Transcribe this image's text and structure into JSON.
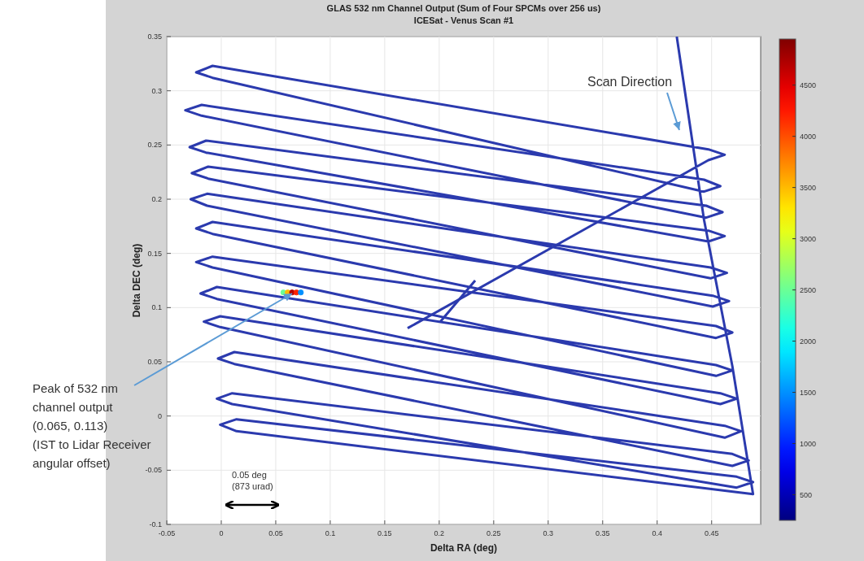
{
  "chart_data": {
    "type": "line",
    "title": "GLAS 532 nm Channel Output (Sum of Four SPCMs over 256 us)",
    "subtitle": "ICESat - Venus Scan #1",
    "xlabel": "Delta RA (deg)",
    "ylabel": "Delta DEC (deg)",
    "xlim": [
      -0.05,
      0.495
    ],
    "ylim": [
      -0.1,
      0.35
    ],
    "xticks": [
      -0.05,
      0,
      0.05,
      0.1,
      0.15,
      0.2,
      0.25,
      0.3,
      0.35,
      0.4,
      0.45
    ],
    "yticks": [
      -0.1,
      -0.05,
      0,
      0.05,
      0.1,
      0.15,
      0.2,
      0.25,
      0.3,
      0.35
    ],
    "clim": [
      250,
      4950
    ],
    "cticks": [
      500,
      1000,
      1500,
      2000,
      2500,
      3000,
      3500,
      4000,
      4500
    ],
    "grid": true,
    "annotations": [
      "Scan Direction",
      {
        "text": "Peak of 532 nm\nchannel output\n(0.065, 0.113)\n(IST to Lidar Receiver\nangular offset)",
        "x": 0.065,
        "y": 0.113
      },
      "0.05 deg\n(873 urad)"
    ],
    "series": [
      {
        "color": "#2b3aae",
        "x": [
          0.418,
          0.443,
          0.469,
          0.488,
          0.014,
          -0.001,
          0.014,
          0.473,
          0.488,
          0.473,
          0.01,
          -0.004,
          0.01,
          0.469,
          0.484,
          0.469,
          0.012,
          -0.003,
          0.012,
          0.462,
          0.477,
          0.462,
          -0.001,
          -0.016,
          -0.001,
          0.458,
          0.473,
          0.458,
          -0.004,
          -0.019,
          -0.004,
          0.454,
          0.469,
          0.454,
          -0.008,
          -0.023,
          -0.008,
          0.454,
          0.469,
          0.454,
          -0.008,
          -0.023,
          -0.008,
          0.451,
          0.466,
          0.451,
          -0.013,
          -0.028,
          -0.013,
          0.449,
          0.464,
          0.449,
          -0.012,
          -0.027,
          -0.012,
          0.447,
          0.462,
          0.447,
          -0.014,
          -0.029,
          -0.014,
          0.445,
          0.46,
          0.445,
          -0.018,
          -0.033,
          -0.018,
          0.443,
          0.458,
          0.443,
          -0.008,
          -0.023,
          -0.008,
          0.447,
          0.462,
          0.447,
          0.171
        ],
        "values": [
          0.35,
          0.181,
          0.046,
          -0.072,
          -0.014,
          -0.008,
          -0.003,
          -0.056,
          -0.061,
          -0.066,
          0.011,
          0.016,
          0.021,
          -0.035,
          -0.041,
          -0.046,
          0.048,
          0.053,
          0.059,
          -0.009,
          -0.014,
          -0.02,
          0.082,
          0.087,
          0.092,
          0.021,
          0.016,
          0.011,
          0.108,
          0.113,
          0.119,
          0.047,
          0.042,
          0.037,
          0.137,
          0.142,
          0.147,
          0.083,
          0.077,
          0.072,
          0.168,
          0.173,
          0.179,
          0.111,
          0.106,
          0.101,
          0.194,
          0.2,
          0.205,
          0.137,
          0.132,
          0.127,
          0.219,
          0.224,
          0.23,
          0.171,
          0.166,
          0.161,
          0.243,
          0.248,
          0.254,
          0.194,
          0.188,
          0.183,
          0.277,
          0.282,
          0.287,
          0.218,
          0.212,
          0.207,
          0.312,
          0.317,
          0.323,
          0.246,
          0.241,
          0.236,
          0.081
        ]
      },
      {
        "color": "#2b3aae",
        "x": [
          0.201,
          0.233
        ],
        "values": [
          0.087,
          0.125
        ]
      },
      {
        "type": "scatter",
        "marker": "circle",
        "x": [
          0.057,
          0.061,
          0.065,
          0.069,
          0.073
        ],
        "values": [
          0.114,
          0.114,
          0.114,
          0.114,
          0.114
        ],
        "cvalues": [
          2500,
          3500,
          4700,
          4200,
          1500
        ],
        "colors": [
          "#6aff95",
          "#ffbb00",
          "#b60000",
          "#ff2300",
          "#0090ff"
        ]
      }
    ]
  }
}
